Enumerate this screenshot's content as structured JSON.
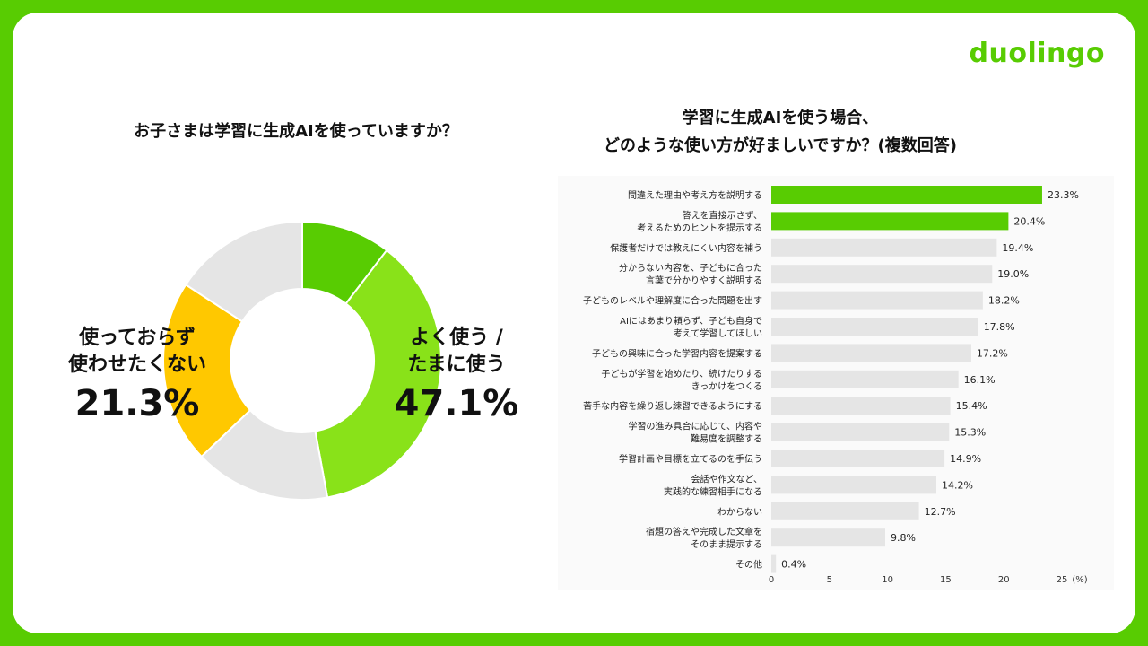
{
  "brand": {
    "name": "duolingo",
    "color": "#58cc02"
  },
  "donut": {
    "title": "お子さまは学習に生成AIを使っていますか？",
    "segments": [
      {
        "value": 10.4,
        "color": "#58cc02"
      },
      {
        "value": 36.7,
        "color": "#89e219"
      },
      {
        "value": 15.8,
        "color": "#e5e5e5"
      },
      {
        "value": 21.3,
        "color": "#ffc800"
      },
      {
        "value": 15.8,
        "color": "#e5e5e5"
      }
    ],
    "label_use": {
      "line1": "よく使う /",
      "line2": "たまに使う",
      "pct": "47.1%"
    },
    "label_not": {
      "line1": "使っておらず",
      "line2": "使わせたくない",
      "pct": "21.3%"
    }
  },
  "bar_title": {
    "line1": "学習に生成AIを使う場合、",
    "line2": "どのような使い方が好ましいですか？(複数回答)"
  },
  "chart_data": {
    "type": "bar",
    "orientation": "horizontal",
    "categories": [
      [
        "間違えた理由や考え方を説明する"
      ],
      [
        "答えを直接示さず、",
        "考えるためのヒントを提示する"
      ],
      [
        "保護者だけでは教えにくい内容を補う"
      ],
      [
        "分からない内容を、子どもに合った",
        "言葉で分かりやすく説明する"
      ],
      [
        "子どものレベルや理解度に合った問題を出す"
      ],
      [
        "AIにはあまり頼らず、子ども自身で",
        "考えて学習してほしい"
      ],
      [
        "子どもの興味に合った学習内容を提案する"
      ],
      [
        "子どもが学習を始めたり、続けたりする",
        "きっかけをつくる"
      ],
      [
        "苦手な内容を繰り返し練習できるようにする"
      ],
      [
        "学習の進み具合に応じて、内容や",
        "難易度を調整する"
      ],
      [
        "学習計画や目標を立てるのを手伝う"
      ],
      [
        "会話や作文など、",
        "実践的な練習相手になる"
      ],
      [
        "わからない"
      ],
      [
        "宿題の答えや完成した文章を",
        "そのまま提示する"
      ],
      [
        "その他"
      ]
    ],
    "values": [
      23.3,
      20.4,
      19.4,
      19.0,
      18.2,
      17.8,
      17.2,
      16.1,
      15.4,
      15.3,
      14.9,
      14.2,
      12.7,
      9.8,
      0.4
    ],
    "value_labels": [
      "23.3%",
      "20.4%",
      "19.4%",
      "19.0%",
      "18.2%",
      "17.8%",
      "17.2%",
      "16.1%",
      "15.4%",
      "15.3%",
      "14.9%",
      "14.2%",
      "12.7%",
      "9.8%",
      "0.4%"
    ],
    "highlight_count": 2,
    "highlight_color": "#58cc02",
    "bar_color": "#e5e5e5",
    "xlim": [
      0,
      25
    ],
    "xticks": [
      "0",
      "5",
      "10",
      "15",
      "20",
      "25"
    ],
    "x_unit": "(%)",
    "grid": false
  }
}
